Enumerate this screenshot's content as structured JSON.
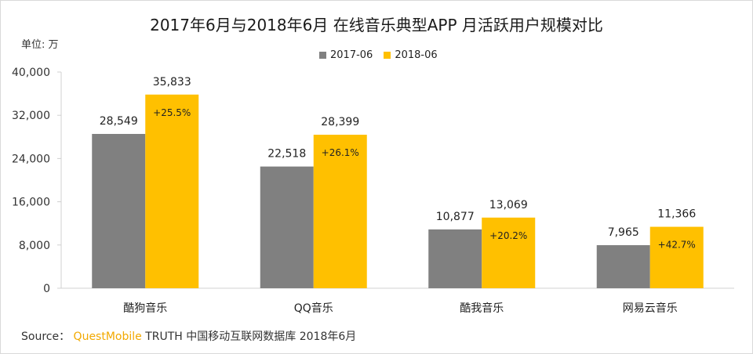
{
  "chart_data": {
    "type": "bar",
    "title": "2017年6月与2018年6月 在线音乐典型APP 月活跃用户规模对比",
    "unit_label": "单位: 万",
    "categories": [
      "酷狗音乐",
      "QQ音乐",
      "酷我音乐",
      "网易云音乐"
    ],
    "series": [
      {
        "name": "2017-06",
        "color": "#808080",
        "values": [
          28549,
          22518,
          10877,
          7965
        ],
        "labels": [
          "28,549",
          "22,518",
          "10,877",
          "7,965"
        ]
      },
      {
        "name": "2018-06",
        "color": "#ffc000",
        "values": [
          35833,
          28399,
          13069,
          11366
        ],
        "labels": [
          "35,833",
          "28,399",
          "13,069",
          "11,366"
        ]
      }
    ],
    "growth_labels": [
      "+25.5%",
      "+26.1%",
      "+20.2%",
      "+42.7%"
    ],
    "ylim": [
      0,
      40000
    ],
    "yticks": [
      0,
      8000,
      16000,
      24000,
      32000,
      40000
    ],
    "ytick_labels": [
      "0",
      "8,000",
      "16,000",
      "24,000",
      "32,000",
      "40,000"
    ],
    "grid": false,
    "legend_position": "top-center"
  },
  "source": {
    "prefix": "Source：",
    "brand": "QuestMobile",
    "text": " TRUTH 中国移动互联网数据库 2018年6月"
  }
}
